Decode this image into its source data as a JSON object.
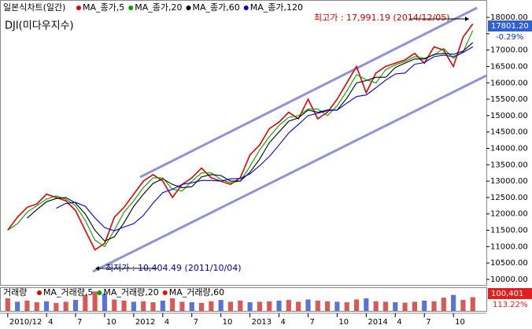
{
  "chart_data": [
    {
      "type": "line",
      "title": "일본식차트(일간)",
      "subtitle": "DJI(미다우지수)",
      "x": [
        0,
        1,
        2,
        3,
        4,
        5,
        6,
        7,
        8,
        9,
        10,
        11,
        12,
        13,
        14,
        15,
        16,
        17,
        18,
        19,
        20,
        21,
        22,
        23,
        24,
        25,
        26,
        27,
        28,
        29,
        30,
        31,
        32,
        33,
        34,
        35,
        36,
        37,
        38,
        39,
        40,
        41,
        42,
        43,
        44,
        45,
        46,
        47,
        48
      ],
      "series": [
        {
          "name": "MA_종가,5",
          "color": "#e00000",
          "values": [
            11500,
            11900,
            12200,
            12300,
            12600,
            12500,
            12400,
            12100,
            11500,
            10900,
            11100,
            11900,
            12200,
            12600,
            13000,
            13200,
            13000,
            12500,
            12900,
            13100,
            13400,
            13100,
            13000,
            12900,
            13100,
            13800,
            14100,
            14600,
            14800,
            15100,
            14900,
            15500,
            14900,
            15100,
            15500,
            16000,
            16500,
            15700,
            16300,
            16500,
            16600,
            16700,
            16900,
            16600,
            17100,
            17000,
            16500,
            17400,
            17800
          ]
        },
        {
          "name": "MA_종가,20",
          "color": "#00a000",
          "values": [
            11500,
            11700,
            12050,
            12250,
            12450,
            12550,
            12450,
            12250,
            11800,
            11200,
            11000,
            11500,
            12050,
            12400,
            12800,
            13100,
            13100,
            12750,
            12700,
            13000,
            13250,
            13250,
            13050,
            12950,
            13000,
            13450,
            13950,
            14350,
            14700,
            14950,
            15000,
            15200,
            15200,
            15000,
            15300,
            15750,
            16250,
            16100,
            16000,
            16400,
            16550,
            16650,
            16800,
            16750,
            16850,
            17050,
            16750,
            16950,
            17600
          ]
        },
        {
          "name": "MA_종가,60",
          "color": "#000000",
          "values": [
            null,
            null,
            11870,
            12130,
            12370,
            12470,
            12500,
            12330,
            12000,
            11500,
            11170,
            11300,
            11730,
            12230,
            12600,
            12930,
            13070,
            12900,
            12800,
            12830,
            13130,
            13200,
            13170,
            13000,
            13000,
            13270,
            13670,
            14170,
            14500,
            14830,
            14930,
            15170,
            15100,
            15170,
            15170,
            15530,
            16000,
            16070,
            16170,
            16170,
            16470,
            16600,
            16730,
            16730,
            16870,
            16900,
            16870,
            16970,
            17230
          ]
        },
        {
          "name": "MA_종가,120",
          "color": "#0000e0",
          "values": [
            null,
            null,
            null,
            null,
            null,
            12170,
            12320,
            12350,
            12230,
            11880,
            11580,
            11480,
            11600,
            11700,
            11950,
            12330,
            12650,
            12750,
            12900,
            12950,
            13020,
            13020,
            13000,
            13070,
            13080,
            13220,
            13470,
            13750,
            14100,
            14470,
            14730,
            15000,
            15070,
            15150,
            15170,
            15380,
            15580,
            15630,
            15850,
            16080,
            16270,
            16300,
            16570,
            16620,
            16800,
            16850,
            16800,
            16930,
            17100
          ]
        }
      ],
      "xlim": [
        -0.8,
        49.4
      ],
      "xticks": [
        {
          "value": 0,
          "label": "2010/12"
        },
        4,
        7,
        10,
        {
          "value": 13,
          "label": "2012"
        },
        {
          "value": 16,
          "label": "4"
        },
        {
          "value": 19,
          "label": "7"
        },
        {
          "value": 22,
          "label": "10"
        },
        {
          "value": 25,
          "label": "2013"
        },
        {
          "value": 28,
          "label": "4"
        },
        {
          "value": 31,
          "label": "7"
        },
        {
          "value": 34,
          "label": "10"
        },
        {
          "value": 37,
          "label": "2014"
        },
        {
          "value": 40,
          "label": "4"
        },
        {
          "value": 43,
          "label": "7"
        },
        {
          "value": 46,
          "label": "10"
        }
      ],
      "ylim": [
        9830,
        18530
      ],
      "yticks": [
        {
          "value": 10000,
          "label": "10000.00"
        },
        {
          "value": 10500,
          "label": "10500.00"
        },
        {
          "value": 11000,
          "label": "11000.00"
        },
        {
          "value": 11500,
          "label": "11500.00"
        },
        {
          "value": 12000,
          "label": "12000.00"
        },
        {
          "value": 12500,
          "label": "12500.00"
        },
        {
          "value": 13000,
          "label": "13000.00"
        },
        {
          "value": 13500,
          "label": "13500.00"
        },
        {
          "value": 14000,
          "label": "14000.00"
        },
        {
          "value": 14500,
          "label": "14500.00"
        },
        {
          "value": 15000,
          "label": "15000.00"
        },
        {
          "value": 15500,
          "label": "15500.00"
        },
        {
          "value": 16000,
          "label": "16000.00"
        },
        {
          "value": 16500,
          "label": "16500.00"
        },
        {
          "value": 17000,
          "label": "17000.00"
        },
        {
          "value": 17500,
          "label": "17500.00"
        },
        {
          "value": 18000,
          "label": "18000.00"
        }
      ],
      "annotations": {
        "high": "최고가 : 17,991.19 (2014/12/05)",
        "low": "최저가 : 10,404.49 (2011/10/04)",
        "last": "17801.20",
        "change": "-0.29%"
      },
      "grid": false
    },
    {
      "type": "bar",
      "title": "거래량",
      "legend": [
        {
          "name": "MA_거래량,5",
          "color": "#e00000"
        },
        {
          "name": "MA_거래량,20",
          "color": "#00a000"
        },
        {
          "name": "MA_거래량,60",
          "color": "#ff0000"
        }
      ],
      "color": "#d03030",
      "values": [
        55,
        40,
        45,
        38,
        42,
        35,
        40,
        48,
        70,
        85,
        75,
        50,
        45,
        40,
        42,
        38,
        45,
        55,
        40,
        38,
        35,
        42,
        48,
        40,
        45,
        38,
        40,
        42,
        45,
        48,
        40,
        50,
        45,
        42,
        40,
        38,
        50,
        55,
        42,
        40,
        38,
        36,
        40,
        45,
        42,
        58,
        70,
        48,
        60
      ],
      "ylim": [
        0,
        100
      ],
      "annotations": {
        "last": "100,401",
        "change": "113.22%"
      }
    }
  ]
}
